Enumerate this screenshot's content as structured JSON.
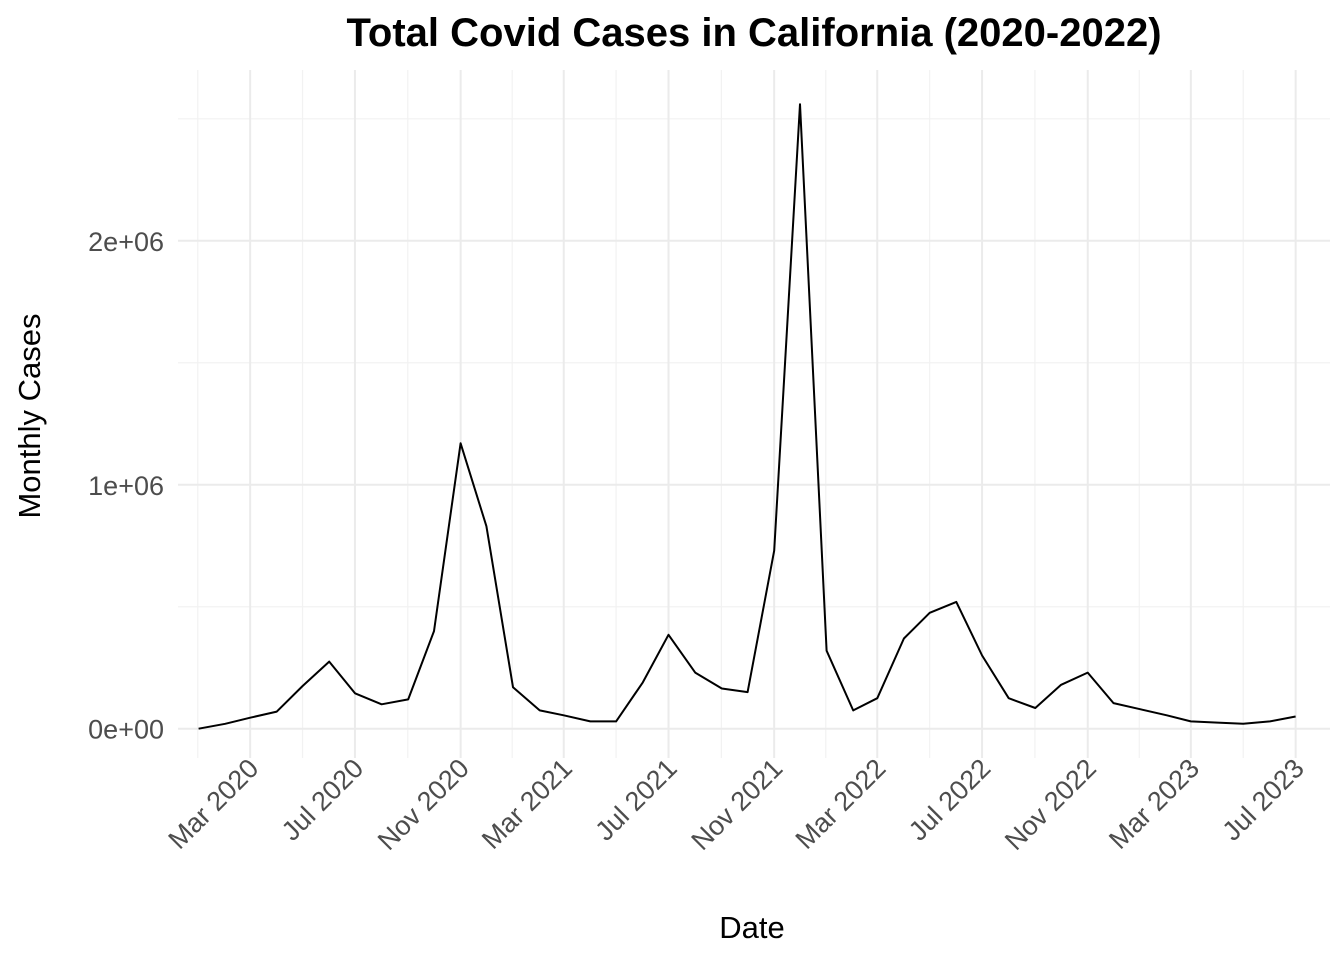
{
  "chart_data": {
    "type": "line",
    "title": "Total Covid Cases in California (2020-2022)",
    "xlabel": "Date",
    "ylabel": "Monthly Cases",
    "x_tick_labels": [
      "Mar 2020",
      "Jul 2020",
      "Nov 2020",
      "Mar 2021",
      "Jul 2021",
      "Nov 2021",
      "Mar 2022",
      "Jul 2022",
      "Nov 2022",
      "Mar 2023",
      "Jul 2023"
    ],
    "y_tick_labels": [
      "0e+00",
      "1e+06",
      "2e+06"
    ],
    "y_ticks": [
      0,
      1000000,
      2000000
    ],
    "xlim": [
      "2019-12-08",
      "2023-08-10"
    ],
    "ylim": [
      -120000,
      2700000
    ],
    "grid": true,
    "x": [
      "2020-01-01",
      "2020-02-01",
      "2020-03-01",
      "2020-04-01",
      "2020-05-01",
      "2020-06-01",
      "2020-07-01",
      "2020-08-01",
      "2020-09-01",
      "2020-10-01",
      "2020-11-01",
      "2020-12-01",
      "2021-01-01",
      "2021-02-01",
      "2021-03-01",
      "2021-04-01",
      "2021-05-01",
      "2021-06-01",
      "2021-07-01",
      "2021-08-01",
      "2021-09-01",
      "2021-10-01",
      "2021-11-01",
      "2021-12-01",
      "2022-01-01",
      "2022-02-01",
      "2022-03-01",
      "2022-04-01",
      "2022-05-01",
      "2022-06-01",
      "2022-07-01",
      "2022-08-01",
      "2022-09-01",
      "2022-10-01",
      "2022-11-01",
      "2022-12-01",
      "2023-01-01",
      "2023-02-01",
      "2023-03-01",
      "2023-04-01",
      "2023-05-01",
      "2023-06-01",
      "2023-07-01"
    ],
    "series": [
      {
        "values": [
          0,
          20000,
          45000,
          70000,
          175000,
          275000,
          145000,
          100000,
          120000,
          400000,
          1170000,
          830000,
          170000,
          75000,
          55000,
          30000,
          30000,
          190000,
          385000,
          230000,
          165000,
          150000,
          730000,
          2560000,
          320000,
          75000,
          125000,
          370000,
          475000,
          520000,
          300000,
          125000,
          85000,
          180000,
          230000,
          105000,
          80000,
          55000,
          30000,
          25000,
          20000,
          30000,
          50000
        ],
        "color": "#000000"
      }
    ]
  }
}
